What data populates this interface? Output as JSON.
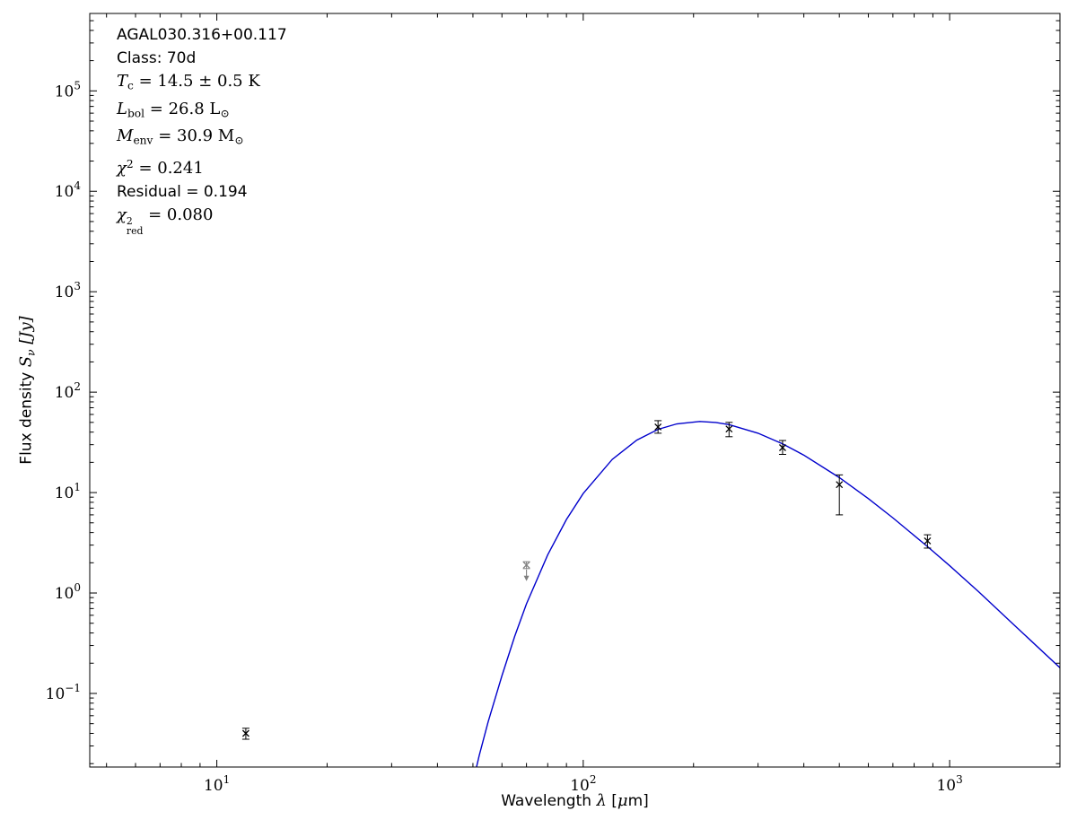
{
  "annotations": {
    "lines": [
      {
        "name": "source-name",
        "segments": [
          {
            "t": "AGAL030.316+00.117",
            "s": "sans"
          }
        ]
      },
      {
        "name": "class-label",
        "segments": [
          {
            "t": "Class: 70d",
            "s": "sans"
          }
        ]
      },
      {
        "name": "dust-temperature",
        "segments": [
          {
            "t": "T",
            "s": "it"
          },
          {
            "t": "c",
            "s": "sub"
          },
          {
            "t": " = 14.5 ± 0.5 K",
            "s": "rm"
          }
        ]
      },
      {
        "name": "bolometric-luminosity",
        "segments": [
          {
            "t": "L",
            "s": "it"
          },
          {
            "t": "bol",
            "s": "sub"
          },
          {
            "t": " = 26.8 L",
            "s": "rm"
          },
          {
            "t": "⊙",
            "s": "sub"
          }
        ]
      },
      {
        "name": "envelope-mass",
        "segments": [
          {
            "t": "M",
            "s": "it"
          },
          {
            "t": "env",
            "s": "sub"
          },
          {
            "t": " = 30.9 M",
            "s": "rm"
          },
          {
            "t": "⊙",
            "s": "sub"
          }
        ]
      },
      {
        "name": "chi-squared",
        "segments": [
          {
            "t": "χ",
            "s": "it"
          },
          {
            "t": "2",
            "s": "sup"
          },
          {
            "t": " = 0.241",
            "s": "rm"
          }
        ]
      },
      {
        "name": "residual",
        "segments": [
          {
            "t": "Residual = 0.194",
            "s": "sans"
          }
        ]
      },
      {
        "name": "reduced-chi-squared",
        "segments": [
          {
            "t": "χ",
            "s": "it"
          },
          {
            "s": "stack",
            "sup": "2",
            "sub": "red"
          },
          {
            "t": " = 0.080",
            "s": "rm"
          }
        ]
      }
    ]
  },
  "chart_data": {
    "type": "scatter",
    "title": "",
    "xlabel": "Wavelength λ [μm]",
    "ylabel": "Flux density S_ν [Jy]",
    "xscale": "log",
    "yscale": "log",
    "xlim": [
      4.5,
      2000
    ],
    "ylim": [
      0.0185,
      590000
    ],
    "grid": false,
    "legend": "none",
    "x_major_ticks": [
      10,
      100,
      1000
    ],
    "y_major_ticks": [
      0.1,
      1,
      10,
      100,
      1000,
      10000,
      100000
    ],
    "axis_labels": {
      "x_segments": [
        {
          "t": "Wavelength ",
          "s": "sans"
        },
        {
          "t": "λ",
          "s": "it"
        },
        {
          "t": " [",
          "s": "sans"
        },
        {
          "t": "μ",
          "s": "it"
        },
        {
          "t": "m]",
          "s": "sans"
        }
      ],
      "y_segments": [
        {
          "t": "Flux density ",
          "s": "sans"
        },
        {
          "t": "S",
          "s": "it"
        },
        {
          "t": "ν",
          "s": "subit"
        },
        {
          "t": " [Jy]",
          "s": "it"
        }
      ]
    },
    "points": [
      {
        "x": 12,
        "y": 0.04,
        "yerr_lo": 0.005,
        "yerr_hi": 0.005,
        "marker": "x",
        "color": "#000000",
        "upper_limit": false
      },
      {
        "x": 70,
        "y": 1.9,
        "yerr_lo": 0.15,
        "yerr_hi": 0.15,
        "marker": "x",
        "color": "#7f7f7f",
        "upper_limit": true
      },
      {
        "x": 160,
        "y": 45,
        "yerr_lo": 6,
        "yerr_hi": 7,
        "marker": "x",
        "color": "#000000",
        "upper_limit": false
      },
      {
        "x": 250,
        "y": 43,
        "yerr_lo": 7,
        "yerr_hi": 7,
        "marker": "x",
        "color": "#000000",
        "upper_limit": false
      },
      {
        "x": 350,
        "y": 28,
        "yerr_lo": 4,
        "yerr_hi": 5,
        "marker": "x",
        "color": "#000000",
        "upper_limit": false
      },
      {
        "x": 500,
        "y": 12,
        "yerr_lo": 6,
        "yerr_hi": 3,
        "marker": "x",
        "color": "#000000",
        "upper_limit": false
      },
      {
        "x": 870,
        "y": 3.3,
        "yerr_lo": 0.5,
        "yerr_hi": 0.5,
        "marker": "x",
        "color": "#000000",
        "upper_limit": false
      }
    ],
    "fit_curve": {
      "name": "greybody-fit",
      "color": "#0000cc",
      "x": [
        50,
        52,
        55,
        60,
        65,
        70,
        80,
        90,
        100,
        120,
        140,
        160,
        180,
        208,
        230,
        250,
        300,
        350,
        400,
        500,
        600,
        700,
        870,
        1000,
        1200,
        1500,
        2000
      ],
      "y": [
        0.013,
        0.024,
        0.052,
        0.15,
        0.37,
        0.78,
        2.4,
        5.4,
        9.8,
        21.4,
        33.3,
        42.6,
        48.3,
        51.0,
        49.9,
        47.5,
        39.0,
        30.6,
        23.6,
        14.1,
        8.7,
        5.6,
        2.9,
        1.87,
        1.03,
        0.48,
        0.18
      ]
    }
  },
  "colors": {
    "fit_line": "#0000cc",
    "data_marker": "#000000",
    "upper_limit_marker": "#7f7f7f",
    "axes": "#000000",
    "background": "#ffffff"
  }
}
